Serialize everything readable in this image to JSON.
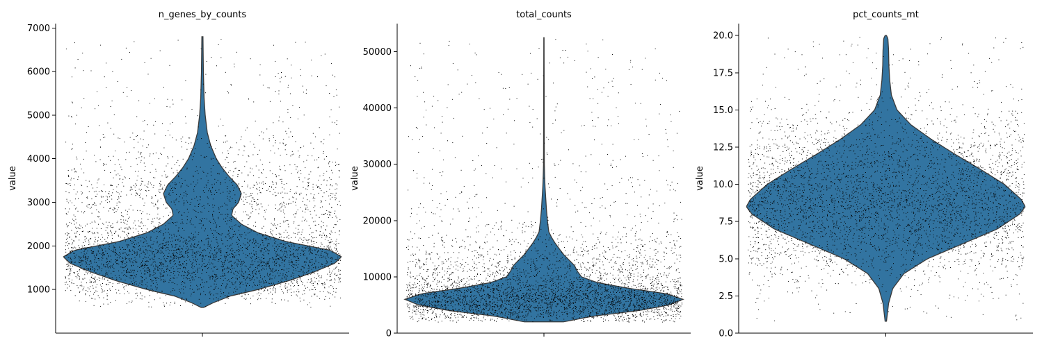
{
  "chart_data": [
    {
      "type": "violin",
      "title": "n_genes_by_counts",
      "xlabel": "",
      "ylabel": "value",
      "ylim": [
        0,
        7100
      ],
      "yticks": [
        1000,
        2000,
        3000,
        4000,
        5000,
        6000,
        7000
      ],
      "data_range": [
        590,
        6800
      ],
      "fill_color": "#3274a1",
      "density_profile": [
        [
          590,
          0.01
        ],
        [
          700,
          0.08
        ],
        [
          850,
          0.2
        ],
        [
          1000,
          0.4
        ],
        [
          1200,
          0.62
        ],
        [
          1400,
          0.8
        ],
        [
          1600,
          0.95
        ],
        [
          1750,
          1.0
        ],
        [
          1900,
          0.92
        ],
        [
          2100,
          0.6
        ],
        [
          2300,
          0.4
        ],
        [
          2500,
          0.28
        ],
        [
          2700,
          0.21
        ],
        [
          2850,
          0.22
        ],
        [
          3000,
          0.26
        ],
        [
          3200,
          0.28
        ],
        [
          3400,
          0.25
        ],
        [
          3600,
          0.19
        ],
        [
          3800,
          0.14
        ],
        [
          4000,
          0.1
        ],
        [
          4300,
          0.06
        ],
        [
          4600,
          0.035
        ],
        [
          5000,
          0.02
        ],
        [
          5400,
          0.012
        ],
        [
          6000,
          0.007
        ],
        [
          6800,
          0.004
        ]
      ]
    },
    {
      "type": "violin",
      "title": "total_counts",
      "xlabel": "",
      "ylabel": "value",
      "ylim": [
        0,
        55000
      ],
      "yticks": [
        0,
        10000,
        20000,
        30000,
        40000,
        50000
      ],
      "data_range": [
        2000,
        52500
      ],
      "fill_color": "#3274a1",
      "density_profile": [
        [
          2000,
          0.14
        ],
        [
          3000,
          0.35
        ],
        [
          4000,
          0.68
        ],
        [
          5000,
          0.9
        ],
        [
          6000,
          1.0
        ],
        [
          7000,
          0.88
        ],
        [
          8000,
          0.6
        ],
        [
          9000,
          0.38
        ],
        [
          10000,
          0.27
        ],
        [
          11000,
          0.24
        ],
        [
          12000,
          0.22
        ],
        [
          13000,
          0.18
        ],
        [
          14000,
          0.14
        ],
        [
          15000,
          0.11
        ],
        [
          16000,
          0.08
        ],
        [
          17000,
          0.055
        ],
        [
          18000,
          0.035
        ],
        [
          20000,
          0.025
        ],
        [
          22000,
          0.018
        ],
        [
          24000,
          0.013
        ],
        [
          26000,
          0.008
        ],
        [
          28000,
          0.005
        ],
        [
          30000,
          0.003
        ],
        [
          40000,
          0.002
        ],
        [
          52500,
          0.001
        ]
      ]
    },
    {
      "type": "violin",
      "title": "pct_counts_mt",
      "xlabel": "",
      "ylabel": "value",
      "ylim": [
        0,
        20.8
      ],
      "yticks": [
        0.0,
        2.5,
        5.0,
        7.5,
        10.0,
        12.5,
        15.0,
        17.5,
        20.0
      ],
      "data_range": [
        0.8,
        20.0
      ],
      "fill_color": "#3274a1",
      "density_profile": [
        [
          0.8,
          0.005
        ],
        [
          2.0,
          0.02
        ],
        [
          3.0,
          0.05
        ],
        [
          4.0,
          0.13
        ],
        [
          5.0,
          0.3
        ],
        [
          6.0,
          0.55
        ],
        [
          7.0,
          0.8
        ],
        [
          8.0,
          0.96
        ],
        [
          8.5,
          1.0
        ],
        [
          9.0,
          0.97
        ],
        [
          10.0,
          0.85
        ],
        [
          11.0,
          0.68
        ],
        [
          12.0,
          0.5
        ],
        [
          13.0,
          0.33
        ],
        [
          14.0,
          0.18
        ],
        [
          15.0,
          0.08
        ],
        [
          16.0,
          0.04
        ],
        [
          17.0,
          0.028
        ],
        [
          18.0,
          0.022
        ],
        [
          19.0,
          0.02
        ],
        [
          19.8,
          0.015
        ],
        [
          20.0,
          0.005
        ]
      ]
    }
  ]
}
